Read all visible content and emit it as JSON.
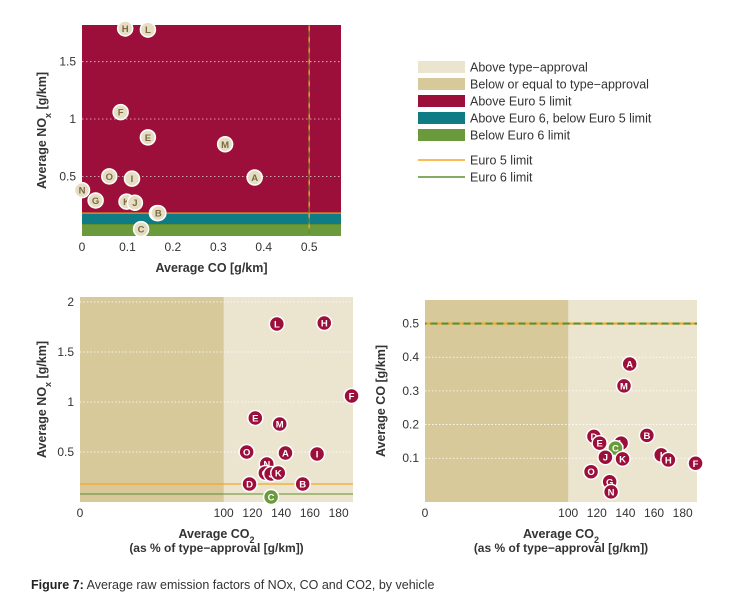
{
  "colors": {
    "above_type_approval": "#ebe4cf",
    "below_type_approval": "#d7c99a",
    "above_euro5": "#9c0f3a",
    "euro6_band": "#0f7b84",
    "below_euro6": "#6a9a3c",
    "euro5_line": "#f5a623",
    "euro6_line": "#5e8f2f",
    "marker_red": "#9c0f3a",
    "marker_green": "#6a9a3c",
    "marker_tan": "#e6ddc3",
    "axis_text": "#333333"
  },
  "legend": {
    "items": [
      {
        "label": "Above type−approval",
        "color": "#ebe4cf",
        "kind": "box"
      },
      {
        "label": "Below or equal to type−approval",
        "color": "#d7c99a",
        "kind": "box"
      },
      {
        "label": "Above Euro 5 limit",
        "color": "#9c0f3a",
        "kind": "box"
      },
      {
        "label": "Above Euro 6, below Euro 5 limit",
        "color": "#0f7b84",
        "kind": "box"
      },
      {
        "label": "Below Euro 6 limit",
        "color": "#6a9a3c",
        "kind": "box"
      },
      {
        "label": "Euro 5 limit",
        "color": "#f5a623",
        "kind": "line"
      },
      {
        "label": "Euro 6 limit",
        "color": "#5e8f2f",
        "kind": "line"
      }
    ]
  },
  "caption": {
    "bold": "Figure 7:",
    "text": " Average raw emission factors of NOx, CO and CO2, by vehicle"
  },
  "chart_data": [
    {
      "type": "scatter",
      "xlabel": "Average CO [g/km]",
      "ylabel": "Average NOx [g/km]",
      "xlim": [
        0,
        0.57
      ],
      "ylim": [
        -0.02,
        1.82
      ],
      "xticks": [
        0,
        0.1,
        0.2,
        0.3,
        0.4,
        0.5
      ],
      "xtick_labels": [
        "0",
        "0.1",
        "0.2",
        "0.3",
        "0.4",
        "0.5"
      ],
      "yticks": [
        0.5,
        1,
        1.5
      ],
      "ytick_labels": [
        "0.5",
        "1",
        "1.5"
      ],
      "euro5": {
        "co": 0.5,
        "nox": 0.18
      },
      "euro6": {
        "co": 0.5,
        "nox": 0.08
      },
      "grid": true,
      "points": [
        {
          "label": "H",
          "x": 0.095,
          "y": 1.79
        },
        {
          "label": "L",
          "x": 0.145,
          "y": 1.78
        },
        {
          "label": "F",
          "x": 0.085,
          "y": 1.06
        },
        {
          "label": "E",
          "x": 0.145,
          "y": 0.84
        },
        {
          "label": "M",
          "x": 0.315,
          "y": 0.78
        },
        {
          "label": "O",
          "x": 0.06,
          "y": 0.5
        },
        {
          "label": "I",
          "x": 0.11,
          "y": 0.48
        },
        {
          "label": "A",
          "x": 0.38,
          "y": 0.49
        },
        {
          "label": "N",
          "x": 0.0,
          "y": 0.38
        },
        {
          "label": "G",
          "x": 0.03,
          "y": 0.29
        },
        {
          "label": "K",
          "x": 0.098,
          "y": 0.28
        },
        {
          "label": "J",
          "x": 0.112,
          "y": 0.27
        },
        {
          "label": "D",
          "x": 0.165,
          "y": 0.18
        },
        {
          "label": "B",
          "x": 0.168,
          "y": 0.18
        },
        {
          "label": "C",
          "x": 0.13,
          "y": 0.04
        }
      ]
    },
    {
      "type": "scatter",
      "xlabel": "Average CO2",
      "xlabel2": "(as % of type−approval [g/km])",
      "ylabel": "Average NOx [g/km]",
      "xlim": [
        0,
        190
      ],
      "ylim": [
        0,
        2.05
      ],
      "xticks": [
        0,
        20,
        40,
        60,
        80,
        100,
        120,
        140,
        160,
        180
      ],
      "xtick_labels": [
        "0",
        "",
        "",
        "",
        "",
        "100",
        "120",
        "140",
        "160",
        "180"
      ],
      "yticks": [
        0.5,
        1,
        1.5,
        2
      ],
      "ytick_labels": [
        "0.5",
        "1",
        "1.5",
        "2"
      ],
      "type_approval_x": 100,
      "euro5_y": 0.18,
      "euro6_y": 0.08,
      "points": [
        {
          "label": "L",
          "x": 137,
          "y": 1.78,
          "color": "red"
        },
        {
          "label": "H",
          "x": 170,
          "y": 1.79,
          "color": "red"
        },
        {
          "label": "F",
          "x": 189,
          "y": 1.06,
          "color": "red"
        },
        {
          "label": "E",
          "x": 122,
          "y": 0.84,
          "color": "red"
        },
        {
          "label": "M",
          "x": 139,
          "y": 0.78,
          "color": "red"
        },
        {
          "label": "O",
          "x": 116,
          "y": 0.5,
          "color": "red"
        },
        {
          "label": "A",
          "x": 143,
          "y": 0.49,
          "color": "red"
        },
        {
          "label": "I",
          "x": 165,
          "y": 0.48,
          "color": "red"
        },
        {
          "label": "N",
          "x": 130,
          "y": 0.38,
          "color": "red"
        },
        {
          "label": "G",
          "x": 129,
          "y": 0.29,
          "color": "red"
        },
        {
          "label": "J",
          "x": 133,
          "y": 0.28,
          "color": "red"
        },
        {
          "label": "K",
          "x": 138,
          "y": 0.29,
          "color": "red"
        },
        {
          "label": "D",
          "x": 118,
          "y": 0.18,
          "color": "red"
        },
        {
          "label": "B",
          "x": 155,
          "y": 0.18,
          "color": "red"
        },
        {
          "label": "C",
          "x": 133,
          "y": 0.05,
          "color": "green"
        }
      ]
    },
    {
      "type": "scatter",
      "xlabel": "Average CO2",
      "xlabel2": "(as % of type−approval [g/km])",
      "ylabel": "Average CO [g/km]",
      "xlim": [
        0,
        190
      ],
      "ylim": [
        -0.03,
        0.57
      ],
      "xticks": [
        0,
        20,
        40,
        60,
        80,
        100,
        120,
        140,
        160,
        180
      ],
      "xtick_labels": [
        "0",
        "",
        "",
        "",
        "",
        "100",
        "120",
        "140",
        "160",
        "180"
      ],
      "yticks": [
        0.1,
        0.2,
        0.3,
        0.4,
        0.5
      ],
      "ytick_labels": [
        "0.1",
        "0.2",
        "0.3",
        "0.4",
        "0.5"
      ],
      "type_approval_x": 100,
      "limit_y": 0.5,
      "points": [
        {
          "label": "A",
          "x": 143,
          "y": 0.38,
          "color": "red"
        },
        {
          "label": "M",
          "x": 139,
          "y": 0.315,
          "color": "red"
        },
        {
          "label": "D",
          "x": 118,
          "y": 0.165,
          "color": "red"
        },
        {
          "label": "E",
          "x": 122,
          "y": 0.145,
          "color": "red"
        },
        {
          "label": "L",
          "x": 137,
          "y": 0.145,
          "color": "red"
        },
        {
          "label": "B",
          "x": 155,
          "y": 0.168,
          "color": "red"
        },
        {
          "label": "C",
          "x": 133,
          "y": 0.13,
          "color": "green"
        },
        {
          "label": "I",
          "x": 165,
          "y": 0.11,
          "color": "red"
        },
        {
          "label": "H",
          "x": 170,
          "y": 0.095,
          "color": "red"
        },
        {
          "label": "K",
          "x": 138,
          "y": 0.098,
          "color": "red"
        },
        {
          "label": "J",
          "x": 133,
          "y": 0.112,
          "color": "red"
        },
        {
          "label": "F",
          "x": 189,
          "y": 0.085,
          "color": "red"
        },
        {
          "label": "O",
          "x": 116,
          "y": 0.06,
          "color": "red"
        },
        {
          "label": "G",
          "x": 129,
          "y": 0.03,
          "color": "red"
        },
        {
          "label": "N",
          "x": 130,
          "y": 0.0,
          "color": "red"
        }
      ]
    }
  ]
}
